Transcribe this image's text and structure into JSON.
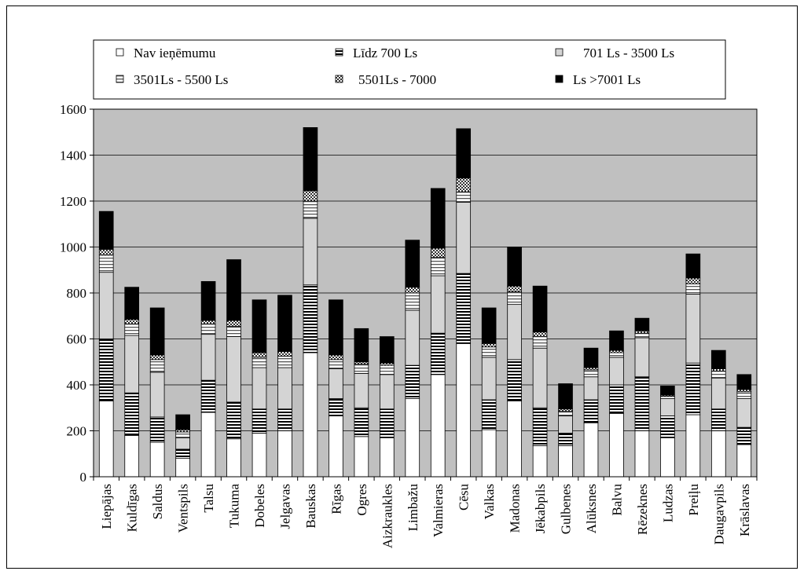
{
  "chart_data": {
    "type": "bar",
    "stacked": true,
    "title": "",
    "xlabel": "",
    "ylabel": "",
    "ylim": [
      0,
      1600
    ],
    "yticks": [
      0,
      200,
      400,
      600,
      800,
      1000,
      1200,
      1400,
      1600
    ],
    "grid": true,
    "legend_position": "top",
    "plot_background": "#c0c0c0",
    "categories": [
      "Liepājas",
      "Kuldīgas",
      "Saldus",
      "Ventspils",
      "Talsu",
      "Tukuma",
      "Dobeles",
      "Jelgavas",
      "Bauskas",
      "Rīgas",
      "Ogres",
      "Aizkraukles",
      "Limbažu",
      "Valmieras",
      "Cēsu",
      "Valkas",
      "Madonas",
      "Jēkabpils",
      "Gulbenes",
      "Alūksnes",
      "Balvu",
      "Rēzeknes",
      "Ludzas",
      "Preiļu",
      "Daugavpils",
      "Krāslavas"
    ],
    "series": [
      {
        "name": "Nav ieņēmumu",
        "pattern": "white",
        "values": [
          330,
          180,
          150,
          80,
          280,
          165,
          190,
          200,
          540,
          265,
          175,
          170,
          340,
          445,
          580,
          205,
          330,
          135,
          135,
          235,
          275,
          200,
          170,
          270,
          200,
          140
        ]
      },
      {
        "name": "Līdz 700 Ls",
        "pattern": "horizontal-dense",
        "values": [
          270,
          185,
          110,
          40,
          140,
          160,
          105,
          95,
          295,
          75,
          125,
          125,
          145,
          180,
          305,
          130,
          180,
          165,
          55,
          100,
          125,
          235,
          95,
          225,
          95,
          75
        ]
      },
      {
        "name": "701 Ls - 3500 Ls",
        "pattern": "light-gray",
        "values": [
          290,
          250,
          195,
          50,
          200,
          285,
          180,
          180,
          290,
          130,
          150,
          150,
          240,
          250,
          310,
          185,
          240,
          260,
          75,
          100,
          120,
          170,
          75,
          300,
          135,
          125
        ]
      },
      {
        "name": "3501Ls - 5500 Ls",
        "pattern": "horizontal-stripes",
        "values": [
          75,
          50,
          55,
          25,
          45,
          45,
          45,
          50,
          75,
          40,
          40,
          40,
          75,
          80,
          45,
          45,
          55,
          50,
          20,
          30,
          20,
          20,
          10,
          45,
          30,
          30
        ]
      },
      {
        "name": "5501Ls - 7000",
        "pattern": "checker",
        "values": [
          25,
          20,
          20,
          10,
          15,
          25,
          20,
          20,
          45,
          20,
          10,
          10,
          25,
          40,
          60,
          15,
          25,
          20,
          10,
          10,
          10,
          10,
          5,
          25,
          10,
          10
        ]
      },
      {
        "name": "Ls >7001 Ls",
        "pattern": "black",
        "values": [
          165,
          140,
          205,
          65,
          170,
          265,
          230,
          245,
          275,
          240,
          145,
          115,
          205,
          260,
          215,
          155,
          170,
          200,
          110,
          85,
          85,
          55,
          40,
          105,
          80,
          65
        ]
      }
    ]
  }
}
